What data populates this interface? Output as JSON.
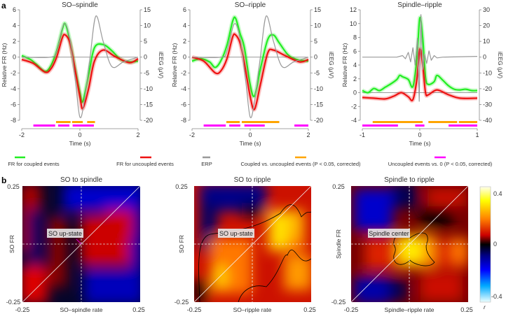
{
  "panel_labels": {
    "a": "a",
    "b": "b"
  },
  "colors": {
    "coupled": "#22ee22",
    "uncoupled": "#ee1111",
    "erp": "#999999",
    "coupled_vs_uncoupled": "#ffa500",
    "uncoupled_vs_0": "#ff00ff"
  },
  "legend": [
    {
      "label": "FR for coupled events",
      "color": "#22ee22"
    },
    {
      "label": "FR for uncoupled events",
      "color": "#ee1111"
    },
    {
      "label": "ERP",
      "color": "#999999"
    },
    {
      "label": "Coupled vs. uncoupled events (P < 0.05, corrected)",
      "color": "#ffa500"
    },
    {
      "label": "Uncoupled events vs. 0 (P < 0.05, corrected)",
      "color": "#ff00ff"
    }
  ],
  "chart_data": [
    {
      "type": "line",
      "title": "SO–spindle",
      "xlabel": "Time (s)",
      "ylabel": "Relative FR (Hz)",
      "y2label": "iEEG (μV)",
      "xlim": [
        -2,
        2
      ],
      "ylim": [
        -8,
        6
      ],
      "y2lim": [
        -20,
        15
      ],
      "xticks": [
        -2,
        0,
        2
      ],
      "yticks": [
        -8,
        -6,
        -4,
        -2,
        0,
        2,
        4,
        6
      ],
      "y2ticks": [
        -20,
        -15,
        -10,
        -5,
        0,
        5,
        10,
        15
      ],
      "series": [
        {
          "name": "FR for coupled events",
          "axis": "left",
          "points": [
            [
              -2,
              0.2
            ],
            [
              -1.7,
              -0.3
            ],
            [
              -1.5,
              -0.9
            ],
            [
              -1.2,
              -1.8
            ],
            [
              -1,
              -1.1
            ],
            [
              -0.8,
              0.8
            ],
            [
              -0.6,
              3.6
            ],
            [
              -0.5,
              4.2
            ],
            [
              -0.35,
              2.2
            ],
            [
              -0.2,
              -0.8
            ],
            [
              0,
              -4.5
            ],
            [
              0.1,
              -5.6
            ],
            [
              0.3,
              -2.2
            ],
            [
              0.5,
              1.2
            ],
            [
              0.8,
              1.6
            ],
            [
              1.1,
              0.8
            ],
            [
              1.4,
              -0.3
            ],
            [
              1.7,
              -0.6
            ],
            [
              2,
              -0.5
            ]
          ]
        },
        {
          "name": "FR for uncoupled events",
          "axis": "left",
          "points": [
            [
              -2,
              -0.3
            ],
            [
              -1.6,
              -0.8
            ],
            [
              -1.2,
              -1.9
            ],
            [
              -1,
              -1.5
            ],
            [
              -0.8,
              0
            ],
            [
              -0.6,
              2.5
            ],
            [
              -0.5,
              2.8
            ],
            [
              -0.35,
              1.9
            ],
            [
              -0.2,
              -0.9
            ],
            [
              0,
              -5
            ],
            [
              0.1,
              -6.5
            ],
            [
              0.3,
              -4
            ],
            [
              0.5,
              -0.5
            ],
            [
              0.8,
              0.9
            ],
            [
              1.2,
              0.1
            ],
            [
              1.7,
              -0.7
            ],
            [
              2,
              -0.2
            ]
          ]
        },
        {
          "name": "ERP",
          "axis": "right",
          "points": [
            [
              -2,
              0
            ],
            [
              -1,
              0
            ],
            [
              -0.8,
              2
            ],
            [
              -0.55,
              10.5
            ],
            [
              -0.35,
              6
            ],
            [
              -0.15,
              -8
            ],
            [
              0,
              -19
            ],
            [
              0.15,
              -14
            ],
            [
              0.35,
              0
            ],
            [
              0.55,
              13
            ],
            [
              0.8,
              5
            ],
            [
              1.1,
              -3
            ],
            [
              1.5,
              -1.5
            ],
            [
              2,
              0
            ]
          ]
        }
      ],
      "significance": {
        "coupled_vs_uncoupled": [
          [
            -0.82,
            -0.32
          ],
          [
            -0.27,
            0.1
          ],
          [
            0.25,
            0.52
          ]
        ],
        "uncoupled_vs_0": [
          [
            -1.6,
            -0.85
          ],
          [
            -0.75,
            -0.36
          ],
          [
            -0.25,
            0.48
          ]
        ]
      }
    },
    {
      "type": "line",
      "title": "SO–ripple",
      "xlabel": "Time (s)",
      "ylabel": "Relative FR (Hz)",
      "y2label": "iEEG (μV)",
      "xlim": [
        -2,
        2
      ],
      "ylim": [
        -8,
        6
      ],
      "y2lim": [
        -20,
        15
      ],
      "xticks": [
        -2,
        0,
        2
      ],
      "yticks": [
        -8,
        -6,
        -4,
        -2,
        0,
        2,
        4,
        6
      ],
      "y2ticks": [
        -20,
        -15,
        -10,
        -5,
        0,
        5,
        10,
        15
      ],
      "series": [
        {
          "name": "FR for coupled events",
          "axis": "left",
          "points": [
            [
              -2,
              -0.5
            ],
            [
              -1.7,
              -0.2
            ],
            [
              -1.4,
              -0.6
            ],
            [
              -1.2,
              -1.3
            ],
            [
              -1,
              -0.4
            ],
            [
              -0.8,
              1.5
            ],
            [
              -0.6,
              4.6
            ],
            [
              -0.5,
              4.9
            ],
            [
              -0.35,
              3
            ],
            [
              -0.2,
              1.2
            ],
            [
              0,
              -3.5
            ],
            [
              0.15,
              -4.9
            ],
            [
              0.35,
              -1.5
            ],
            [
              0.6,
              2.2
            ],
            [
              0.8,
              2.8
            ],
            [
              1,
              1.8
            ],
            [
              1.3,
              0.3
            ],
            [
              1.6,
              -0.3
            ],
            [
              2,
              -0.5
            ]
          ]
        },
        {
          "name": "FR for uncoupled events",
          "axis": "left",
          "points": [
            [
              -2,
              0
            ],
            [
              -1.6,
              -0.5
            ],
            [
              -1.2,
              -2
            ],
            [
              -1,
              -1.7
            ],
            [
              -0.8,
              -0.2
            ],
            [
              -0.6,
              2.6
            ],
            [
              -0.5,
              2.8
            ],
            [
              -0.35,
              1.8
            ],
            [
              -0.2,
              -0.8
            ],
            [
              0,
              -5
            ],
            [
              0.15,
              -6.6
            ],
            [
              0.35,
              -3.5
            ],
            [
              0.6,
              0.5
            ],
            [
              0.8,
              0.9
            ],
            [
              1.2,
              0.2
            ],
            [
              1.7,
              -0.6
            ],
            [
              2,
              -0.3
            ]
          ]
        },
        {
          "name": "ERP",
          "axis": "right",
          "points": [
            [
              -2,
              0
            ],
            [
              -1,
              0
            ],
            [
              -0.8,
              2
            ],
            [
              -0.55,
              10.5
            ],
            [
              -0.35,
              6
            ],
            [
              -0.15,
              -8
            ],
            [
              0,
              -19
            ],
            [
              0.15,
              -14
            ],
            [
              0.35,
              0
            ],
            [
              0.55,
              13
            ],
            [
              0.8,
              5
            ],
            [
              1.1,
              -3
            ],
            [
              1.5,
              -1.5
            ],
            [
              2,
              0
            ]
          ]
        }
      ],
      "significance": {
        "coupled_vs_uncoupled": [
          [
            -0.82,
            -0.36
          ],
          [
            -0.29,
            1.0
          ]
        ],
        "uncoupled_vs_0": [
          [
            -1.6,
            -0.84
          ],
          [
            -0.72,
            -0.34
          ],
          [
            -0.2,
            0.5
          ],
          [
            1.52,
            2.0
          ]
        ]
      }
    },
    {
      "type": "line",
      "title": "Spindle–ripple",
      "xlabel": "Time (s)",
      "ylabel": "Relative FR (Hz)",
      "y2label": "iEEG (μV)",
      "xlim": [
        -1,
        1
      ],
      "ylim": [
        -4,
        12
      ],
      "y2lim": [
        -40,
        30
      ],
      "xticks": [
        -1,
        0,
        1
      ],
      "yticks": [
        -4,
        -2,
        0,
        2,
        4,
        6,
        8,
        10,
        12
      ],
      "y2ticks": [
        -40,
        -30,
        -20,
        -10,
        0,
        10,
        20,
        30
      ],
      "series": [
        {
          "name": "FR for coupled events",
          "axis": "left",
          "points": [
            [
              -1,
              0.3
            ],
            [
              -0.9,
              0
            ],
            [
              -0.8,
              0.6
            ],
            [
              -0.7,
              0.3
            ],
            [
              -0.6,
              0.8
            ],
            [
              -0.5,
              1.3
            ],
            [
              -0.4,
              1.9
            ],
            [
              -0.35,
              2.5
            ],
            [
              -0.3,
              2.3
            ],
            [
              -0.2,
              1.9
            ],
            [
              -0.12,
              0.9
            ],
            [
              -0.05,
              5
            ],
            [
              0,
              10.8
            ],
            [
              0.05,
              8
            ],
            [
              0.1,
              2.2
            ],
            [
              0.15,
              1.2
            ],
            [
              0.25,
              1.6
            ],
            [
              0.3,
              2.5
            ],
            [
              0.4,
              1.8
            ],
            [
              0.5,
              1
            ],
            [
              0.6,
              0.5
            ],
            [
              0.7,
              0.4
            ],
            [
              0.8,
              0.5
            ],
            [
              0.9,
              0.3
            ],
            [
              1,
              0.3
            ]
          ]
        },
        {
          "name": "FR for uncoupled events",
          "axis": "left",
          "points": [
            [
              -1,
              -0.7
            ],
            [
              -0.8,
              -0.8
            ],
            [
              -0.6,
              -0.9
            ],
            [
              -0.45,
              -0.5
            ],
            [
              -0.32,
              0
            ],
            [
              -0.2,
              -0.6
            ],
            [
              -0.12,
              -1
            ],
            [
              -0.05,
              2
            ],
            [
              0,
              6.3
            ],
            [
              0.05,
              4
            ],
            [
              0.1,
              0
            ],
            [
              0.15,
              -0.3
            ],
            [
              0.3,
              0.4
            ],
            [
              0.5,
              -0.3
            ],
            [
              0.7,
              -0.8
            ],
            [
              1,
              -0.8
            ]
          ]
        },
        {
          "name": "ERP",
          "axis": "right",
          "points": [
            [
              -1,
              0
            ],
            [
              -0.4,
              0
            ],
            [
              -0.3,
              1
            ],
            [
              -0.25,
              -1
            ],
            [
              -0.2,
              3
            ],
            [
              -0.16,
              -3
            ],
            [
              -0.12,
              6
            ],
            [
              -0.08,
              -5
            ],
            [
              -0.04,
              12
            ],
            [
              -0.01,
              -28
            ],
            [
              0.02,
              27
            ],
            [
              0.05,
              -8
            ],
            [
              0.08,
              2
            ],
            [
              0.12,
              -4
            ],
            [
              0.16,
              4
            ],
            [
              0.2,
              -2
            ],
            [
              0.25,
              1
            ],
            [
              0.3,
              -0.5
            ],
            [
              0.4,
              0
            ],
            [
              1,
              0.5
            ]
          ]
        }
      ],
      "significance": {
        "coupled_vs_uncoupled": [
          [
            -0.82,
            0.05
          ],
          [
            0.15,
            0.65
          ],
          [
            0.68,
            1.0
          ]
        ],
        "uncoupled_vs_0": [
          [
            -1.0,
            -0.38
          ],
          [
            -0.08,
            0.08
          ],
          [
            0.5,
            1.0
          ]
        ]
      }
    },
    {
      "type": "heatmap",
      "title": "SO to spindle",
      "xlabel": "SO–spindle rate",
      "ylabel": "SO FR",
      "xlim": [
        -0.25,
        0.25
      ],
      "ylim": [
        -0.25,
        0.25
      ],
      "xticks": [
        "-0.25",
        "0.25"
      ],
      "yticks": [
        "0.25",
        "-0.25"
      ],
      "annotation": "SO up-state"
    },
    {
      "type": "heatmap",
      "title": "SO to ripple",
      "xlabel": "SO–ripple rate",
      "ylabel": "SO FR",
      "xlim": [
        -0.25,
        0.25
      ],
      "ylim": [
        -0.25,
        0.25
      ],
      "xticks": [
        "-0.25",
        "0.25"
      ],
      "yticks": [
        "0.25",
        "-0.25"
      ],
      "annotation": "SO up-state"
    },
    {
      "type": "heatmap",
      "title": "Spindle to ripple",
      "xlabel": "Spindle–ripple rate",
      "ylabel": "Spindle FR",
      "xlim": [
        -0.25,
        0.25
      ],
      "ylim": [
        -0.25,
        0.25
      ],
      "xticks": [
        "-0.25",
        "0.25"
      ],
      "yticks": [
        "0.25",
        "-0.25"
      ],
      "annotation": "Spindle center"
    }
  ],
  "colorbar": {
    "label": "r",
    "ticks": [
      "0.4",
      "0",
      "-0.4"
    ],
    "range": [
      -0.45,
      0.45
    ]
  }
}
